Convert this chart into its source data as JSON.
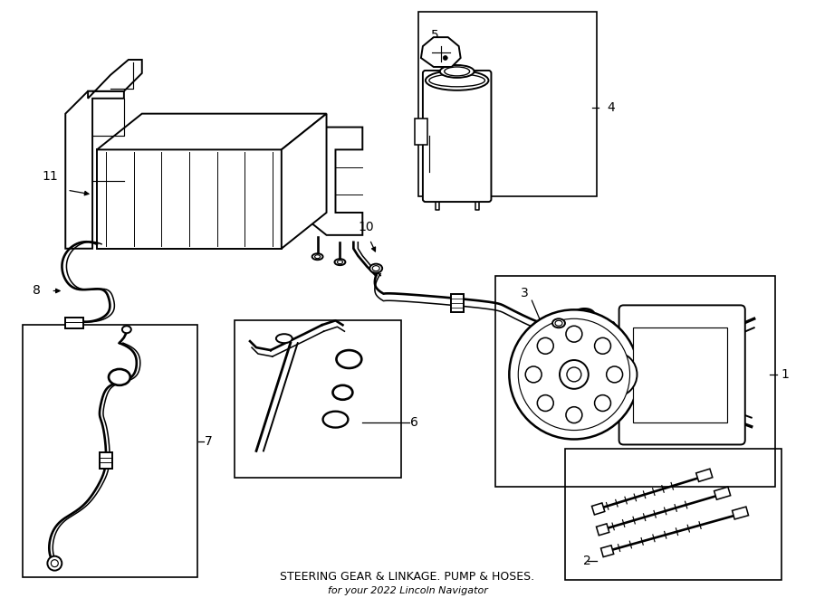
{
  "title": "STEERING GEAR & LINKAGE. PUMP & HOSES.",
  "subtitle": "for your 2022 Lincoln Navigator",
  "background_color": "#ffffff",
  "line_color": "#000000",
  "text_color": "#000000",
  "fig_width": 9.0,
  "fig_height": 6.61,
  "dpi": 100,
  "label_fontsize": 10,
  "title_fontsize": 9,
  "subtitle_fontsize": 8,
  "lw_main": 1.4,
  "lw_thin": 0.8,
  "lw_thick": 2.0
}
